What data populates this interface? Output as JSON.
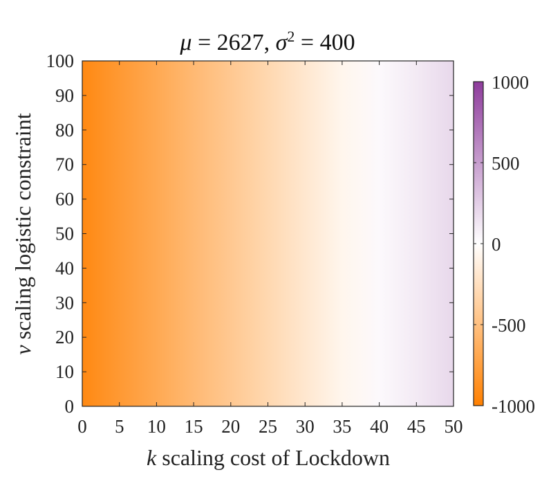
{
  "chart_data": {
    "type": "heatmap",
    "title": {
      "parts": [
        {
          "text": "μ",
          "italic": true
        },
        {
          "text": " = 2627, ",
          "italic": false
        },
        {
          "text": "σ",
          "italic": true
        },
        {
          "text": "2",
          "italic": false,
          "superscript": true
        },
        {
          "text": " = 400",
          "italic": false
        }
      ]
    },
    "xlabel": {
      "var": "k",
      "rest": " scaling cost of Lockdown"
    },
    "ylabel": {
      "var": "v",
      "rest": " scaling logistic constraint"
    },
    "xlim": [
      0,
      50
    ],
    "ylim": [
      0,
      100
    ],
    "xticks": [
      0,
      5,
      10,
      15,
      20,
      25,
      30,
      35,
      40,
      45,
      50
    ],
    "yticks": [
      0,
      10,
      20,
      30,
      40,
      50,
      60,
      70,
      80,
      90,
      100
    ],
    "x": [
      0,
      5,
      10,
      15,
      20,
      25,
      30,
      35,
      40,
      45,
      50
    ],
    "values_by_x": [
      -930,
      -800,
      -680,
      -550,
      -430,
      -310,
      -190,
      -70,
      30,
      110,
      200
    ],
    "varies_along_y": false,
    "colorbar": {
      "limits": [
        -1000,
        1000
      ],
      "ticks": [
        1000,
        500,
        0,
        -500,
        -1000
      ],
      "tick_labels": [
        "1000",
        "500",
        "0",
        "-500",
        "-1000"
      ],
      "colormap": {
        "low": "#ff8000",
        "mid": "#ffffff",
        "high": "#8e3c9c"
      }
    },
    "grid": false
  }
}
